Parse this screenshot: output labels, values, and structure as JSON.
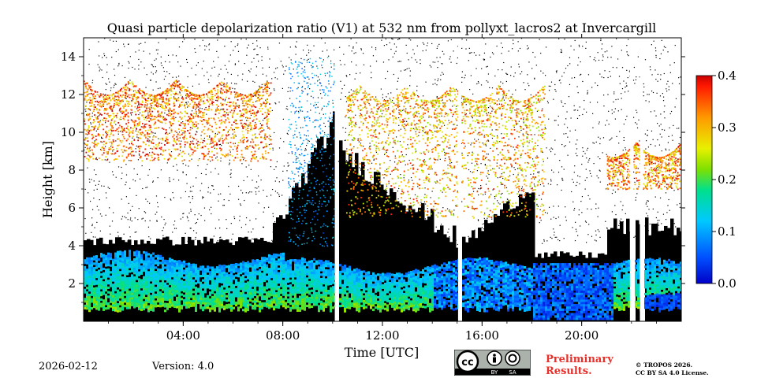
{
  "chart_data": {
    "type": "heatmap",
    "title": "Quasi particle depolarization ratio (V1) at 532 nm from pollyxt_lacros2 at Invercargill",
    "xlabel": "Time [UTC]",
    "ylabel": "Height [km]",
    "xlim": [
      0,
      24
    ],
    "ylim": [
      0,
      15
    ],
    "x_ticks": [
      4,
      8,
      12,
      16,
      20
    ],
    "x_tick_labels": [
      "04:00",
      "08:00",
      "12:00",
      "16:00",
      "20:00"
    ],
    "y_ticks": [
      2,
      4,
      6,
      8,
      10,
      12,
      14
    ],
    "y_tick_labels": [
      "2",
      "4",
      "6",
      "8",
      "10",
      "12",
      "14"
    ],
    "colorbar": {
      "min": 0.0,
      "max": 0.4,
      "ticks": [
        0.0,
        0.1,
        0.2,
        0.3,
        0.4
      ],
      "tick_labels": [
        "0.0",
        "0.1",
        "0.2",
        "0.3",
        "0.4"
      ],
      "colormap": "jet"
    },
    "data_gaps_utc": [
      10.15,
      15.1,
      22.0,
      22.4
    ],
    "regions": [
      {
        "name": "boundary-layer aerosol",
        "t_start": 0.0,
        "t_end": 24.0,
        "h_bottom": 0.3,
        "h_top": 3.6,
        "value": 0.12
      },
      {
        "name": "cirrus cloud",
        "t_start": 0.0,
        "t_end": 7.5,
        "h_bottom": 8.5,
        "h_top": 12.8,
        "value": 0.33
      },
      {
        "name": "cirrus cloud",
        "t_start": 10.5,
        "t_end": 18.5,
        "h_bottom": 5.5,
        "h_top": 12.5,
        "value": 0.3
      },
      {
        "name": "cirrus cloud",
        "t_start": 21.0,
        "t_end": 24.0,
        "h_bottom": 7.0,
        "h_top": 9.5,
        "value": 0.32
      },
      {
        "name": "low depolarization layer",
        "t_start": 18.0,
        "t_end": 21.0,
        "h_bottom": 0.2,
        "h_top": 3.5,
        "value": 0.05
      }
    ]
  },
  "footer": {
    "date": "2026-02-12",
    "version": "Version: 4.0",
    "preliminary": [
      "Preliminary",
      "Results."
    ],
    "license": [
      "© TROPOS 2026.",
      "CC BY SA 4.0 License."
    ],
    "cc_badge": {
      "cc": "cc",
      "by": "BY",
      "sa": "SA"
    }
  }
}
